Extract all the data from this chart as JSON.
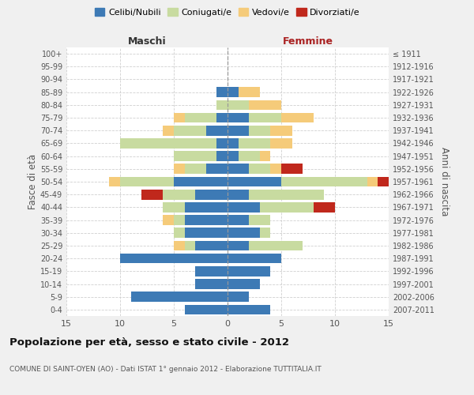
{
  "age_groups": [
    "0-4",
    "5-9",
    "10-14",
    "15-19",
    "20-24",
    "25-29",
    "30-34",
    "35-39",
    "40-44",
    "45-49",
    "50-54",
    "55-59",
    "60-64",
    "65-69",
    "70-74",
    "75-79",
    "80-84",
    "85-89",
    "90-94",
    "95-99",
    "100+"
  ],
  "birth_years": [
    "2007-2011",
    "2002-2006",
    "1997-2001",
    "1992-1996",
    "1987-1991",
    "1982-1986",
    "1977-1981",
    "1972-1976",
    "1967-1971",
    "1962-1966",
    "1957-1961",
    "1952-1956",
    "1947-1951",
    "1942-1946",
    "1937-1941",
    "1932-1936",
    "1927-1931",
    "1922-1926",
    "1917-1921",
    "1912-1916",
    "≤ 1911"
  ],
  "male": {
    "celibi": [
      4,
      9,
      3,
      3,
      10,
      3,
      4,
      4,
      4,
      3,
      5,
      2,
      1,
      1,
      2,
      1,
      0,
      1,
      0,
      0,
      0
    ],
    "coniugati": [
      0,
      0,
      0,
      0,
      0,
      1,
      1,
      1,
      2,
      3,
      5,
      2,
      4,
      9,
      3,
      3,
      1,
      0,
      0,
      0,
      0
    ],
    "vedovi": [
      0,
      0,
      0,
      0,
      0,
      1,
      0,
      1,
      0,
      0,
      1,
      1,
      0,
      0,
      1,
      1,
      0,
      0,
      0,
      0,
      0
    ],
    "divorziati": [
      0,
      0,
      0,
      0,
      0,
      0,
      0,
      0,
      0,
      2,
      0,
      0,
      0,
      0,
      0,
      0,
      0,
      0,
      0,
      0,
      0
    ]
  },
  "female": {
    "nubili": [
      4,
      2,
      3,
      4,
      5,
      2,
      3,
      2,
      3,
      2,
      5,
      2,
      1,
      1,
      2,
      2,
      0,
      1,
      0,
      0,
      0
    ],
    "coniugate": [
      0,
      0,
      0,
      0,
      0,
      5,
      1,
      2,
      5,
      7,
      8,
      2,
      2,
      3,
      2,
      3,
      2,
      0,
      0,
      0,
      0
    ],
    "vedove": [
      0,
      0,
      0,
      0,
      0,
      0,
      0,
      0,
      0,
      0,
      1,
      1,
      1,
      2,
      2,
      3,
      3,
      2,
      0,
      0,
      0
    ],
    "divorziate": [
      0,
      0,
      0,
      0,
      0,
      0,
      0,
      0,
      2,
      0,
      1,
      2,
      0,
      0,
      0,
      0,
      0,
      0,
      0,
      0,
      0
    ]
  },
  "colors": {
    "celibi_nubili": "#3d7ab5",
    "coniugati": "#c8dba0",
    "vedovi": "#f5cb7a",
    "divorziati": "#c0281c"
  },
  "xlim": 15,
  "title": "Popolazione per età, sesso e stato civile - 2012",
  "subtitle": "COMUNE DI SAINT-OYEN (AO) - Dati ISTAT 1° gennaio 2012 - Elaborazione TUTTITALIA.IT",
  "ylabel": "Fasce di età",
  "ylabel_right": "Anni di nascita",
  "legend_labels": [
    "Celibi/Nubili",
    "Coniugati/e",
    "Vedovi/e",
    "Divorziati/e"
  ],
  "bg_color": "#f0f0f0",
  "plot_bg": "#ffffff",
  "grid_color": "#d0d0d0"
}
